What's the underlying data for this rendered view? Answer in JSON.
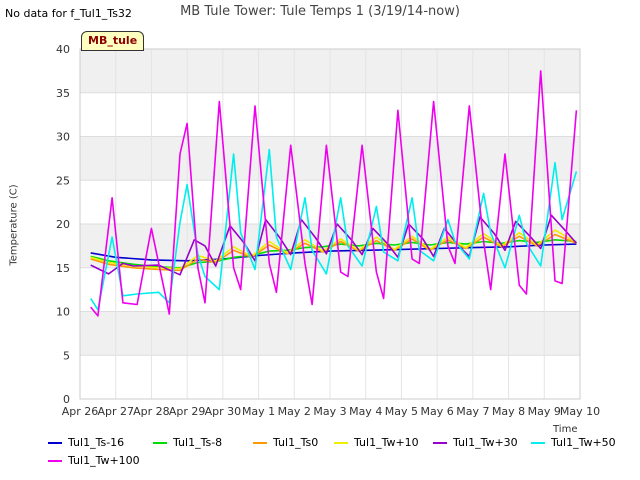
{
  "header": {
    "no_data_note": "No data for f_Tul1_Ts32",
    "badge": "MB_tule"
  },
  "chart_data": {
    "type": "line",
    "title": "MB Tule Tower: Tule Temps 1 (3/19/14-now)",
    "xlabel": "Time",
    "ylabel": "Temperature (C)",
    "ylim": [
      0,
      40
    ],
    "yticks": [
      0,
      5,
      10,
      15,
      20,
      25,
      30,
      35,
      40
    ],
    "xlim": [
      0,
      14
    ],
    "xtick_labels": [
      "Apr 26",
      "Apr 27",
      "Apr 28",
      "Apr 29",
      "Apr 30",
      "May 1",
      "May 2",
      "May 3",
      "May 4",
      "May 5",
      "May 6",
      "May 7",
      "May 8",
      "May 9",
      "May 10"
    ],
    "grid": true,
    "legend_position": "bottom",
    "series": [
      {
        "name": "Tul1_Ts-16",
        "color": "#0000cc",
        "x": [
          0.3,
          1,
          2,
          3,
          4,
          5,
          6,
          7,
          8,
          9,
          10,
          11,
          12,
          13,
          13.9
        ],
        "y": [
          16.7,
          16.2,
          15.9,
          15.8,
          16.0,
          16.4,
          16.7,
          16.9,
          17.0,
          17.1,
          17.2,
          17.3,
          17.4,
          17.6,
          17.7
        ]
      },
      {
        "name": "Tul1_Ts-8",
        "color": "#00dd00",
        "x": [
          0.3,
          0.8,
          1.5,
          2.2,
          2.8,
          3.3,
          3.8,
          4.3,
          4.8,
          5.3,
          5.8,
          6.3,
          6.8,
          7.3,
          7.8,
          8.3,
          8.8,
          9.3,
          9.8,
          10.3,
          10.8,
          11.3,
          11.8,
          12.3,
          12.8,
          13.3,
          13.9
        ],
        "y": [
          16.3,
          15.8,
          15.4,
          15.1,
          15.0,
          15.6,
          15.7,
          16.2,
          16.4,
          16.9,
          17.0,
          17.3,
          17.4,
          17.7,
          17.5,
          17.8,
          17.6,
          17.9,
          17.6,
          17.9,
          17.7,
          18.0,
          17.8,
          18.1,
          17.9,
          18.2,
          18.0
        ]
      },
      {
        "name": "Tul1_Ts0",
        "color": "#ff9900",
        "x": [
          0.3,
          0.8,
          1.5,
          2.2,
          2.8,
          3.3,
          3.8,
          4.3,
          4.8,
          5.3,
          5.8,
          6.3,
          6.8,
          7.3,
          7.8,
          8.3,
          8.8,
          9.3,
          9.8,
          10.3,
          10.8,
          11.3,
          11.8,
          12.3,
          12.8,
          13.3,
          13.9
        ],
        "y": [
          16.0,
          15.4,
          15.0,
          14.8,
          14.7,
          16.0,
          15.6,
          17.0,
          16.2,
          17.6,
          16.6,
          17.8,
          16.8,
          18.0,
          16.9,
          18.1,
          17.0,
          18.3,
          17.0,
          18.2,
          17.2,
          18.5,
          17.4,
          18.6,
          17.5,
          18.8,
          17.8
        ]
      },
      {
        "name": "Tul1_Tw+10",
        "color": "#eeee00",
        "x": [
          0.3,
          0.8,
          1.5,
          2.2,
          2.8,
          3.3,
          3.8,
          4.3,
          4.8,
          5.3,
          5.8,
          6.3,
          6.8,
          7.3,
          7.8,
          8.3,
          8.8,
          9.3,
          9.8,
          10.3,
          10.8,
          11.3,
          11.8,
          12.3,
          12.8,
          13.3,
          13.9
        ],
        "y": [
          16.2,
          15.6,
          15.2,
          15.0,
          14.9,
          16.4,
          15.8,
          17.4,
          16.3,
          18.0,
          16.7,
          18.2,
          16.9,
          18.3,
          17.0,
          18.5,
          17.1,
          18.6,
          17.1,
          18.5,
          17.3,
          18.9,
          17.5,
          19.0,
          17.6,
          19.3,
          17.9
        ]
      },
      {
        "name": "Tul1_Tw+30",
        "color": "#9900cc",
        "x": [
          0.3,
          0.8,
          1.2,
          1.5,
          2.2,
          2.8,
          3.2,
          3.5,
          3.8,
          4.2,
          4.6,
          4.9,
          5.2,
          5.6,
          5.9,
          6.2,
          6.6,
          6.9,
          7.2,
          7.6,
          7.9,
          8.2,
          8.6,
          8.9,
          9.2,
          9.6,
          9.9,
          10.2,
          10.6,
          10.9,
          11.2,
          11.6,
          11.9,
          12.2,
          12.6,
          12.9,
          13.2,
          13.6,
          13.9
        ],
        "y": [
          15.3,
          14.3,
          15.5,
          15.2,
          15.3,
          14.2,
          18.2,
          17.5,
          15.2,
          19.8,
          17.8,
          15.8,
          20.5,
          18.4,
          16.5,
          20.5,
          18.4,
          16.6,
          20.0,
          18.2,
          16.5,
          19.5,
          17.8,
          16.2,
          20.0,
          18.3,
          16.3,
          19.5,
          17.5,
          16.3,
          20.8,
          18.9,
          17.0,
          20.3,
          18.6,
          17.2,
          21.0,
          19.2,
          17.8
        ]
      },
      {
        "name": "Tul1_Tw+50",
        "color": "#00eeee",
        "x": [
          0.3,
          0.5,
          0.9,
          1.2,
          1.6,
          2.2,
          2.5,
          2.8,
          3.0,
          3.3,
          3.5,
          3.9,
          4.3,
          4.5,
          4.9,
          5.3,
          5.5,
          5.9,
          6.3,
          6.5,
          6.9,
          7.3,
          7.5,
          7.9,
          8.3,
          8.5,
          8.9,
          9.3,
          9.5,
          9.9,
          10.3,
          10.5,
          10.9,
          11.3,
          11.5,
          11.9,
          12.3,
          12.5,
          12.9,
          13.3,
          13.5,
          13.9
        ],
        "y": [
          11.5,
          10.2,
          18.5,
          11.8,
          12.0,
          12.2,
          11.0,
          20.2,
          24.5,
          16.5,
          14.0,
          12.5,
          28.0,
          19.0,
          14.8,
          28.5,
          18.5,
          14.8,
          23.0,
          17.0,
          14.3,
          23.0,
          17.5,
          15.2,
          22.0,
          16.8,
          15.8,
          23.0,
          17.0,
          15.8,
          20.5,
          18.0,
          16.0,
          23.5,
          19.0,
          15.0,
          21.0,
          17.8,
          15.2,
          27.0,
          20.5,
          26.0
        ]
      },
      {
        "name": "Tul1_Tw+100",
        "color": "#ee00ee",
        "x": [
          0.3,
          0.5,
          0.9,
          1.2,
          1.6,
          2.0,
          2.5,
          2.8,
          3.0,
          3.3,
          3.5,
          3.9,
          4.3,
          4.5,
          4.9,
          5.3,
          5.5,
          5.9,
          6.3,
          6.5,
          6.9,
          7.3,
          7.5,
          7.9,
          8.3,
          8.5,
          8.9,
          9.3,
          9.5,
          9.9,
          10.3,
          10.5,
          10.9,
          11.3,
          11.5,
          11.9,
          12.3,
          12.5,
          12.9,
          13.3,
          13.5,
          13.9
        ],
        "y": [
          10.5,
          9.5,
          23.0,
          11.0,
          10.8,
          19.5,
          9.7,
          28.0,
          31.5,
          15.0,
          11.0,
          34.0,
          15.0,
          12.5,
          33.5,
          15.5,
          12.2,
          29.0,
          15.5,
          10.8,
          29.0,
          14.5,
          14.0,
          29.0,
          14.5,
          11.5,
          33.0,
          16.0,
          15.5,
          34.0,
          17.5,
          15.5,
          33.5,
          18.0,
          12.5,
          28.0,
          13.0,
          12.0,
          37.5,
          13.5,
          13.2,
          33.0
        ]
      }
    ]
  }
}
